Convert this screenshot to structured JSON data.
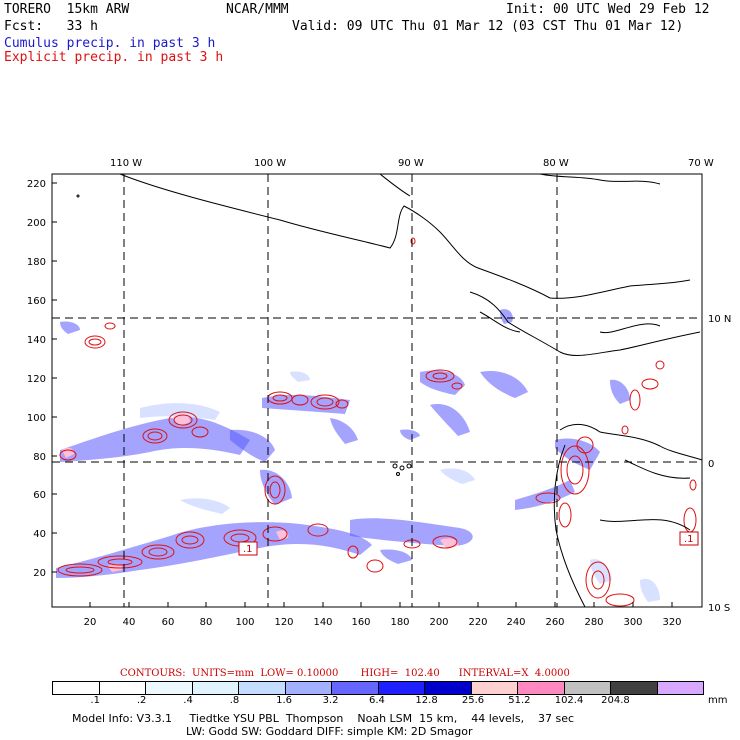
{
  "header": {
    "model": "TORERO  15km ARW",
    "center": "NCAR/MMM",
    "init": "Init: 00 UTC Wed 29 Feb 12",
    "fcst": "Fcst:   33 h",
    "valid": "Valid: 09 UTC Thu 01 Mar 12 (03 CST Thu 01 Mar 12)",
    "cumulus": "Cumulus precip. in past 3 h",
    "explicit": "Explicit precip. in past 3 h"
  },
  "axes": {
    "top_lon": [
      "110 W",
      "100 W",
      "90 W",
      "80 W",
      "70 W"
    ],
    "right_lat": [
      "10 N",
      "0",
      "10 S"
    ],
    "y_ticks": [
      "220",
      "200",
      "180",
      "160",
      "140",
      "120",
      "100",
      "80",
      "60",
      "40",
      "20"
    ],
    "x_ticks": [
      "20",
      "40",
      "60",
      "80",
      "100",
      "120",
      "140",
      "160",
      "180",
      "200",
      "220",
      "240",
      "260",
      "280",
      "300",
      "320"
    ]
  },
  "labels": {
    "box1": ".1",
    "box2": ".1"
  },
  "legend": {
    "title": "CONTOURS:  UNITS=mm  LOW= 0.10000       HIGH=  102.40      INTERVAL=X  4.0000",
    "values": [
      ".1",
      ".2",
      ".4",
      ".8",
      "1.6",
      "3.2",
      "6.4",
      "12.8",
      "25.6",
      "51.2",
      "102.4",
      "204.8"
    ],
    "unit": "mm",
    "colors": [
      "#ffffff",
      "#ffffff",
      "#eef8ff",
      "#e0f4ff",
      "#c4dcff",
      "#a3b0ff",
      "#6666ff",
      "#2020ff",
      "#0000cc",
      "#ffd0d0",
      "#ff88c0",
      "#c0c0c0",
      "#404040",
      "#d8a8ff"
    ]
  },
  "footer": {
    "line1": "Model Info: V3.3.1     Tiedtke YSU PBL  Thompson    Noah LSM  15 km,    44 levels,    37 sec",
    "line2": "LW: Godd SW: Goddard DIFF: simple KM: 2D Smagor"
  }
}
